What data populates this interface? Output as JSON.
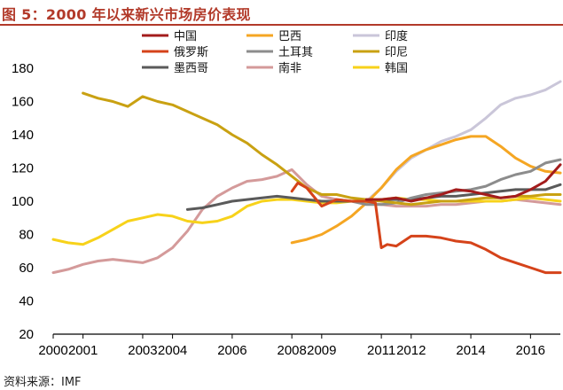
{
  "figure": {
    "title": "图 5：2000 年以来新兴市场房价表现",
    "source": "资料来源：IMF"
  },
  "chart_data": {
    "type": "line",
    "xlim": [
      2000,
      2017
    ],
    "ylim": [
      20,
      180
    ],
    "x_ticks": [
      "2000",
      "2001",
      "2003",
      "2004",
      "2006",
      "2008",
      "2009",
      "2011",
      "2012",
      "2014",
      "2016"
    ],
    "y_ticks": [
      "20",
      "40",
      "60",
      "80",
      "100",
      "120",
      "140",
      "160",
      "180"
    ],
    "grid": false,
    "legend_placement": "top-center, 3 columns",
    "series": [
      {
        "name": "中国",
        "color": "#a31c1c",
        "x": [
          2010.5,
          2011.0,
          2011.5,
          2012.0,
          2012.5,
          2013.0,
          2013.5,
          2014.0,
          2014.5,
          2015.0,
          2015.5,
          2016.0,
          2016.5,
          2017.0
        ],
        "y": [
          101,
          101,
          102,
          100,
          102,
          104,
          107,
          106,
          104,
          102,
          103,
          107,
          112,
          122
        ]
      },
      {
        "name": "巴西",
        "color": "#f5a623",
        "x": [
          2008.0,
          2008.5,
          2009.0,
          2009.5,
          2010.0,
          2010.5,
          2011.0,
          2011.5,
          2012.0,
          2012.5,
          2013.0,
          2013.5,
          2014.0,
          2014.5,
          2015.0,
          2015.5,
          2016.0,
          2016.5,
          2017.0
        ],
        "y": [
          75,
          77,
          80,
          85,
          91,
          99,
          108,
          119,
          127,
          131,
          134,
          137,
          139,
          139,
          133,
          126,
          121,
          118,
          117
        ]
      },
      {
        "name": "印度",
        "color": "#cac6d9",
        "x": [
          2010.5,
          2011.0,
          2011.5,
          2012.0,
          2012.5,
          2013.0,
          2013.5,
          2014.0,
          2014.5,
          2015.0,
          2015.5,
          2016.0,
          2016.5,
          2017.0
        ],
        "y": [
          100,
          108,
          118,
          126,
          131,
          136,
          139,
          143,
          150,
          158,
          162,
          164,
          167,
          172
        ]
      },
      {
        "name": "俄罗斯",
        "color": "#d5431a",
        "x": [
          2008.0,
          2008.2,
          2008.5,
          2009.0,
          2009.5,
          2010.0,
          2010.5,
          2010.8,
          2011.0,
          2011.2,
          2011.5,
          2012.0,
          2012.5,
          2013.0,
          2013.5,
          2014.0,
          2014.5,
          2015.0,
          2015.5,
          2016.0,
          2016.5,
          2017.0
        ],
        "y": [
          106,
          111,
          108,
          97,
          101,
          100,
          100,
          99,
          72,
          74,
          73,
          79,
          79,
          78,
          76,
          75,
          71,
          66,
          63,
          60,
          57,
          57
        ]
      },
      {
        "name": "土耳其",
        "color": "#8c8c8c",
        "x": [
          2010.0,
          2010.5,
          2011.0,
          2011.5,
          2012.0,
          2012.5,
          2013.0,
          2013.5,
          2014.0,
          2014.5,
          2015.0,
          2015.5,
          2016.0,
          2016.5,
          2017.0
        ],
        "y": [
          100,
          98,
          98,
          99,
          102,
          104,
          105,
          106,
          107,
          109,
          113,
          116,
          118,
          123,
          125
        ]
      },
      {
        "name": "印尼",
        "color": "#c9a112",
        "x": [
          2001.0,
          2001.5,
          2002.0,
          2002.5,
          2003.0,
          2003.5,
          2004.0,
          2004.5,
          2005.0,
          2005.5,
          2006.0,
          2006.5,
          2007.0,
          2007.5,
          2008.0,
          2008.5,
          2009.0,
          2009.5,
          2010.0,
          2010.5,
          2011.0,
          2011.5,
          2012.0,
          2012.5,
          2013.0,
          2013.5,
          2014.0,
          2014.5,
          2015.0,
          2015.5,
          2016.0,
          2016.5,
          2017.0
        ],
        "y": [
          165,
          162,
          160,
          157,
          163,
          160,
          158,
          154,
          150,
          146,
          140,
          135,
          128,
          122,
          115,
          108,
          104,
          104,
          102,
          101,
          100,
          99,
          98,
          99,
          100,
          100,
          101,
          102,
          102,
          103,
          103,
          104,
          104
        ]
      },
      {
        "name": "墨西哥",
        "color": "#5a5a5a",
        "x": [
          2004.5,
          2005.0,
          2005.5,
          2006.0,
          2006.5,
          2007.0,
          2007.5,
          2008.0,
          2008.5,
          2009.0,
          2009.5,
          2010.0,
          2010.5,
          2011.0,
          2011.5,
          2012.0,
          2012.5,
          2013.0,
          2013.5,
          2014.0,
          2014.5,
          2015.0,
          2015.5,
          2016.0,
          2016.5,
          2017.0
        ],
        "y": [
          95,
          96,
          98,
          100,
          101,
          102,
          103,
          102,
          101,
          100,
          100,
          100,
          100,
          101,
          101,
          101,
          102,
          103,
          103,
          104,
          105,
          106,
          107,
          107,
          107,
          110
        ]
      },
      {
        "name": "南非",
        "color": "#d49a9a",
        "x": [
          2000.0,
          2000.5,
          2001.0,
          2001.5,
          2002.0,
          2002.5,
          2003.0,
          2003.5,
          2004.0,
          2004.5,
          2005.0,
          2005.5,
          2006.0,
          2006.5,
          2007.0,
          2007.5,
          2008.0,
          2008.5,
          2009.0,
          2009.5,
          2010.0,
          2010.5,
          2011.0,
          2011.5,
          2012.0,
          2012.5,
          2013.0,
          2013.5,
          2014.0,
          2014.5,
          2015.0,
          2015.5,
          2016.0,
          2016.5,
          2017.0
        ],
        "y": [
          57,
          59,
          62,
          64,
          65,
          64,
          63,
          66,
          72,
          82,
          95,
          103,
          108,
          112,
          113,
          115,
          119,
          110,
          103,
          101,
          100,
          99,
          98,
          97,
          97,
          97,
          98,
          98,
          99,
          100,
          100,
          101,
          100,
          99,
          98
        ]
      },
      {
        "name": "韩国",
        "color": "#f7d21a",
        "x": [
          2000.0,
          2000.5,
          2001.0,
          2001.5,
          2002.0,
          2002.5,
          2003.0,
          2003.5,
          2004.0,
          2004.5,
          2005.0,
          2005.5,
          2006.0,
          2006.5,
          2007.0,
          2007.5,
          2008.0,
          2008.5,
          2009.0,
          2009.5,
          2010.0,
          2010.5,
          2011.0,
          2011.5,
          2012.0,
          2012.5,
          2013.0,
          2013.5,
          2014.0,
          2014.5,
          2015.0,
          2015.5,
          2016.0,
          2016.5,
          2017.0
        ],
        "y": [
          77,
          75,
          74,
          78,
          83,
          88,
          90,
          92,
          91,
          88,
          87,
          88,
          91,
          97,
          100,
          101,
          101,
          100,
          99,
          99,
          100,
          101,
          101,
          102,
          101,
          101,
          100,
          100,
          100,
          100,
          100,
          101,
          102,
          101,
          100
        ]
      }
    ]
  }
}
